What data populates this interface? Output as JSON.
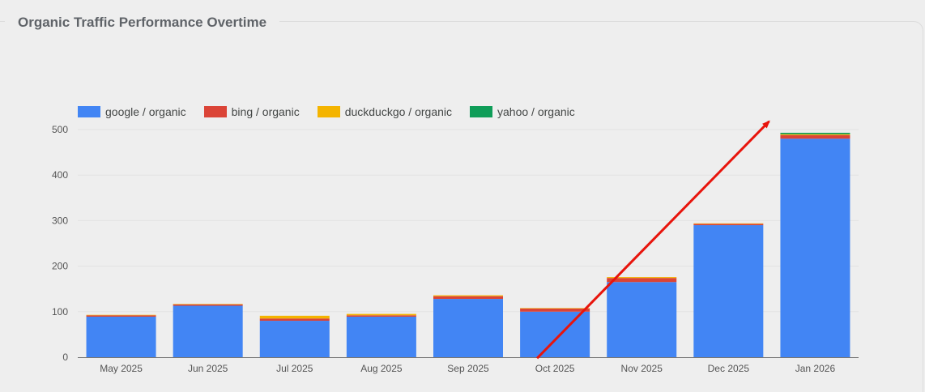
{
  "title": "Organic Traffic Performance Overtime",
  "colors": {
    "google": "#4285f4",
    "bing": "#db4437",
    "duckduckgo": "#f4b400",
    "yahoo": "#0f9d58",
    "arrow": "#e8140c",
    "grid": "#e2e2e2",
    "axis": "#777777"
  },
  "legend": [
    {
      "label": "google / organic",
      "color": "#4285f4"
    },
    {
      "label": "bing / organic",
      "color": "#db4437"
    },
    {
      "label": "duckduckgo / organic",
      "color": "#f4b400"
    },
    {
      "label": "yahoo / organic",
      "color": "#0f9d58"
    }
  ],
  "chart_data": {
    "type": "bar",
    "stacked": true,
    "title": "Organic Traffic Performance Overtime",
    "xlabel": "",
    "ylabel": "",
    "ylim": [
      0,
      500
    ],
    "yticks": [
      0,
      100,
      200,
      300,
      400,
      500
    ],
    "grid": true,
    "legend_position": "top-left",
    "categories": [
      "May 2025",
      "Jun 2025",
      "Jul 2025",
      "Aug 2025",
      "Sep 2025",
      "Oct 2025",
      "Nov 2025",
      "Dec 2025",
      "Jan 2026"
    ],
    "series": [
      {
        "name": "google / organic",
        "color": "#4285f4",
        "values": [
          89,
          113,
          80,
          89,
          128,
          100,
          165,
          290,
          480
        ]
      },
      {
        "name": "bing / organic",
        "color": "#db4437",
        "values": [
          3,
          3,
          5,
          3,
          6,
          7,
          9,
          3,
          8
        ]
      },
      {
        "name": "duckduckgo / organic",
        "color": "#f4b400",
        "values": [
          1,
          1,
          6,
          3,
          2,
          1,
          2,
          1,
          2
        ]
      },
      {
        "name": "yahoo / organic",
        "color": "#0f9d58",
        "values": [
          0,
          0,
          0,
          0,
          0,
          0,
          0,
          0,
          3
        ]
      }
    ],
    "annotation": {
      "type": "trend-arrow",
      "from_category": "Oct 2025",
      "to_category": "Jan 2026",
      "color": "#e8140c"
    }
  }
}
